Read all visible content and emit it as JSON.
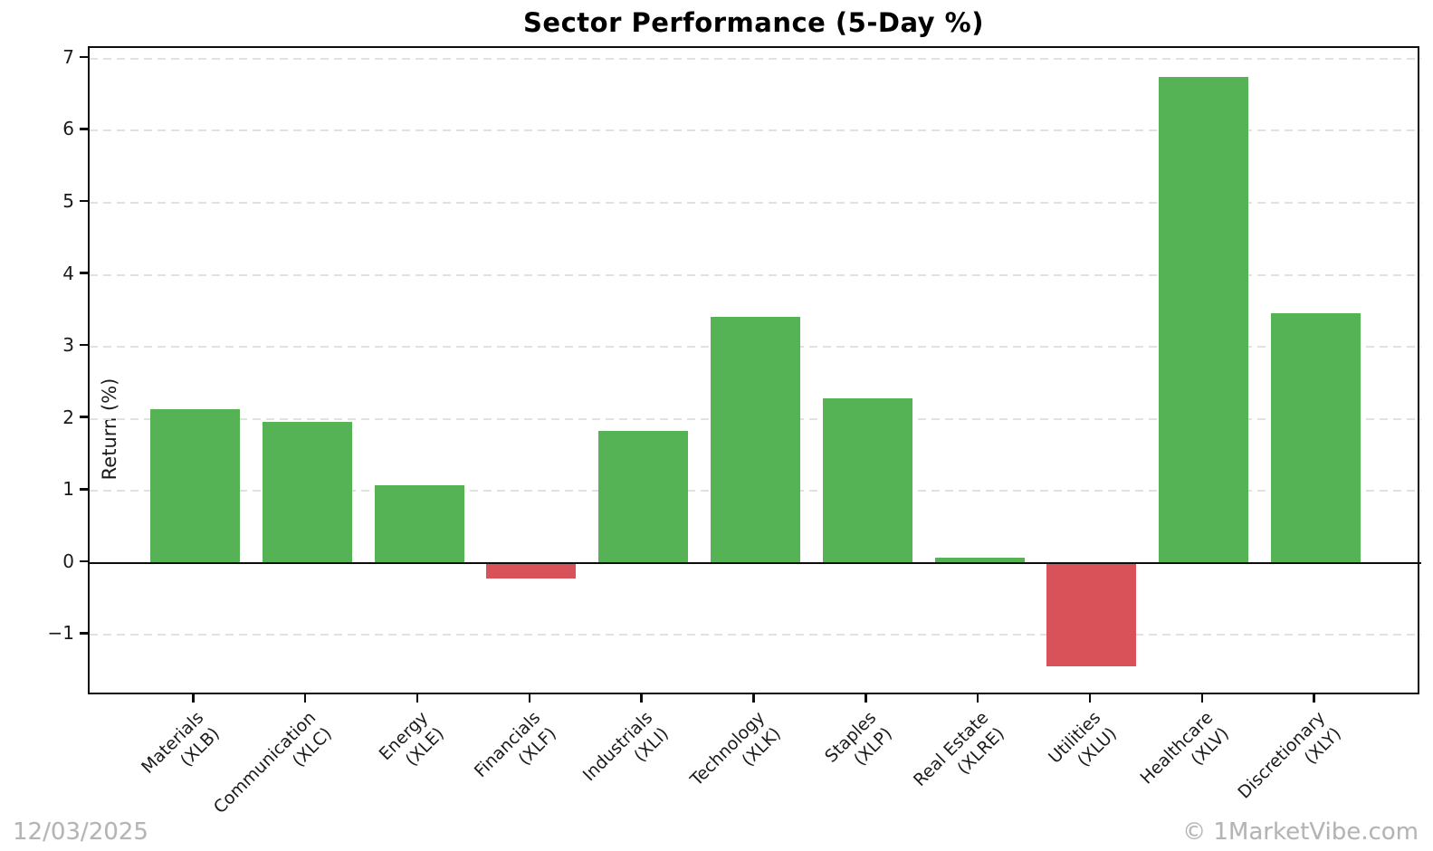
{
  "title": "Sector Performance (5-Day %)",
  "watermarks": {
    "date": "12/03/2025",
    "brand": "© 1MarketVibe.com"
  },
  "chart_data": {
    "type": "bar",
    "title": "Sector Performance (5-Day %)",
    "xlabel": "",
    "ylabel": "Return (%)",
    "categories": [
      "Materials\n(XLB)",
      "Communication\n(XLC)",
      "Energy\n(XLE)",
      "Financials\n(XLF)",
      "Industrials\n(XLI)",
      "Technology\n(XLK)",
      "Staples\n(XLP)",
      "Real Estate\n(XLRE)",
      "Utilities\n(XLU)",
      "Healthcare\n(XLV)",
      "Discretionary\n(XLY)"
    ],
    "values": [
      2.13,
      1.96,
      1.08,
      -0.22,
      1.83,
      3.42,
      2.29,
      0.07,
      -1.43,
      6.75,
      3.47
    ],
    "yticks": [
      -1,
      0,
      1,
      2,
      3,
      4,
      5,
      6,
      7
    ],
    "ylim": [
      -1.85,
      7.15
    ],
    "bar_width_ratio": 0.8,
    "grid": "horizontal-dashed",
    "legend": "none",
    "colors": {
      "positive": "#55b255",
      "negative": "#d9525a",
      "gridline": "#e1e1e1",
      "axis": "#0d0d0d",
      "text": "#1a1a1a",
      "watermark": "#b4b4b4"
    }
  }
}
